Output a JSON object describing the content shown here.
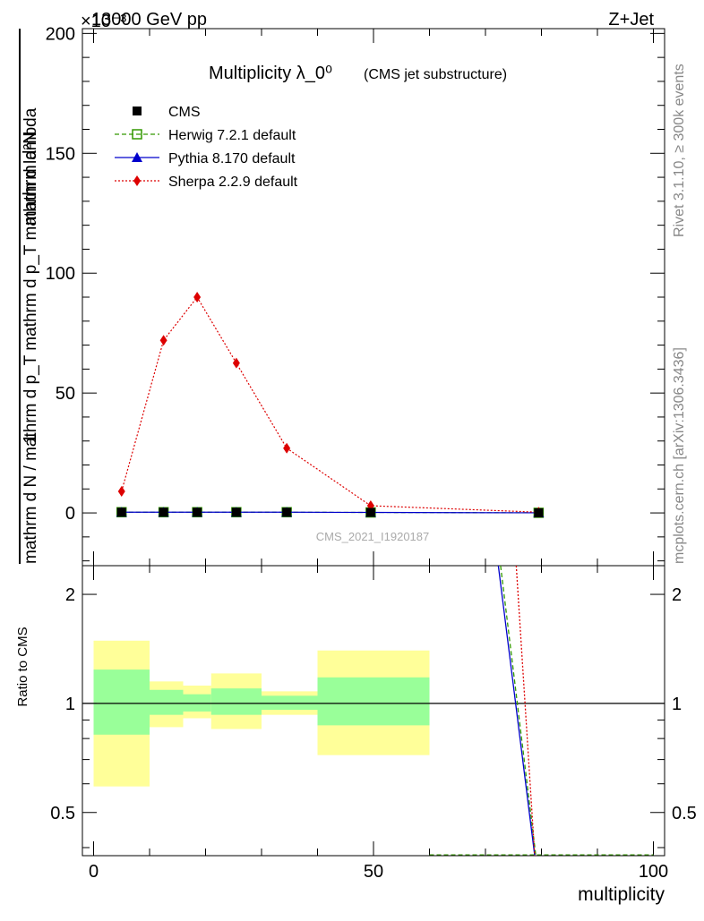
{
  "header": {
    "left": "13000 GeV pp",
    "exponent": "×10⁻³",
    "right": "Z+Jet"
  },
  "side_labels": {
    "top": "Rivet 3.1.10, ≥ 300k events",
    "bottom": "mcplots.cern.ch [arXiv:1306.3436]"
  },
  "watermark": "CMS_2021_I1920187",
  "chart_data": {
    "type": "line",
    "title": "Multiplicity λ_0⁰",
    "subtitle": "(CMS jet substructure)",
    "ylabel_num": "1",
    "ylabel_den": "mathrm d N / mathrm d p_T mathrm d p_T mathrm d lambda",
    "ylabel_top": "mathrm d²N",
    "xlabel": "multiplicity",
    "ratio_ylabel": "Ratio to CMS",
    "xlim": [
      -2,
      102
    ],
    "ylim": [
      -22,
      202
    ],
    "ratio_ylim": [
      0.38,
      2.4
    ],
    "y_ticks": [
      "0",
      "50",
      "100",
      "150",
      "200"
    ],
    "x_ticks": [
      "0",
      "50",
      "100"
    ],
    "ratio_ticks": [
      "0.5",
      "1",
      "2"
    ],
    "x": [
      5,
      12.5,
      18.5,
      25.5,
      34.5,
      49.5,
      79.5
    ],
    "series": [
      {
        "name": "CMS",
        "color": "#000000",
        "marker": "square",
        "values": [
          0.3,
          0.3,
          0.3,
          0.3,
          0.3,
          0.2,
          0.05
        ]
      },
      {
        "name": "Herwig 7.2.1 default",
        "color": "#339900",
        "marker": "open-square",
        "values": [
          0.3,
          0.3,
          0.3,
          0.3,
          0.3,
          0.2,
          0.05
        ]
      },
      {
        "name": "Pythia 8.170 default",
        "color": "#0000cc",
        "marker": "triangle",
        "values": [
          0.3,
          0.3,
          0.3,
          0.3,
          0.3,
          0.2,
          0.05
        ]
      },
      {
        "name": "Sherpa 2.2.9 default",
        "color": "#dd0000",
        "marker": "diamond",
        "values": [
          9,
          72,
          90,
          62.5,
          27,
          3,
          0.3
        ]
      }
    ],
    "ratio_bands": [
      {
        "x0": 0,
        "x1": 10,
        "inner": [
          0.82,
          1.24
        ],
        "outer": [
          0.59,
          1.49
        ]
      },
      {
        "x0": 10,
        "x1": 16,
        "inner": [
          0.93,
          1.09
        ],
        "outer": [
          0.86,
          1.15
        ]
      },
      {
        "x0": 16,
        "x1": 21,
        "inner": [
          0.95,
          1.06
        ],
        "outer": [
          0.91,
          1.12
        ]
      },
      {
        "x0": 21,
        "x1": 30,
        "inner": [
          0.93,
          1.1
        ],
        "outer": [
          0.85,
          1.21
        ]
      },
      {
        "x0": 30,
        "x1": 40,
        "inner": [
          0.96,
          1.05
        ],
        "outer": [
          0.93,
          1.08
        ]
      },
      {
        "x0": 40,
        "x1": 60,
        "inner": [
          0.87,
          1.18
        ],
        "outer": [
          0.72,
          1.4
        ]
      }
    ],
    "ratio_lines": [
      {
        "name": "Herwig 7.2.1 default",
        "color": "#339900",
        "dash": "5,3",
        "points": [
          [
            72.7,
            2.4
          ],
          [
            79.0,
            0.38
          ]
        ]
      },
      {
        "name": "Pythia 8.170 default",
        "color": "#0000cc",
        "dash": "",
        "points": [
          [
            72.3,
            2.4
          ],
          [
            78.8,
            0.38
          ]
        ]
      },
      {
        "name": "Sherpa 2.2.9 default",
        "color": "#dd0000",
        "dash": "2,2",
        "points": [
          [
            75.5,
            2.4
          ],
          [
            78.8,
            0.38
          ]
        ]
      }
    ],
    "ratio_floor_segment": [
      [
        60,
        100
      ],
      0.38
    ]
  }
}
